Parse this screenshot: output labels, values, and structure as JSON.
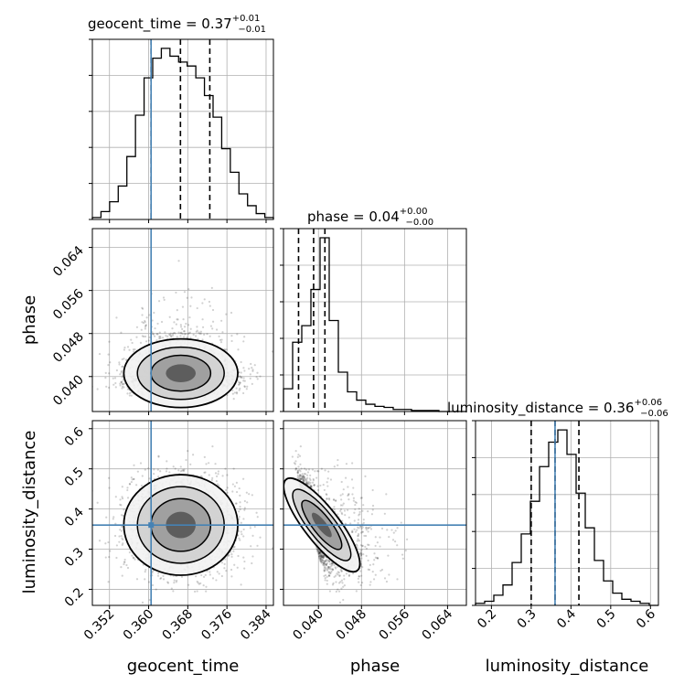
{
  "chart_data": {
    "type": "corner",
    "parameters": [
      "geocent_time",
      "phase",
      "luminosity_distance"
    ],
    "truths": {
      "geocent_time": 0.3605,
      "phase": null,
      "luminosity_distance": 0.36
    },
    "titles": [
      {
        "text": "geocent_time = 0.37",
        "sup": "+0.01",
        "sub": "−0.01"
      },
      {
        "text": "phase = 0.04",
        "sup": "+0.00",
        "sub": "−0.00"
      },
      {
        "text": "luminosity_distance = 0.36",
        "sup": "+0.06",
        "sub": "−0.06"
      }
    ],
    "axis_labels": {
      "geocent_time": "geocent_time",
      "phase": "phase",
      "luminosity_distance": "luminosity_distance"
    },
    "ranges": {
      "geocent_time": [
        0.3485,
        0.3855
      ],
      "phase": [
        0.0335,
        0.0675
      ],
      "luminosity_distance": [
        0.16,
        0.62
      ]
    },
    "ticks": {
      "geocent_time": [
        "0.352",
        "0.360",
        "0.368",
        "0.376",
        "0.384"
      ],
      "phase": [
        "0.040",
        "0.048",
        "0.056",
        "0.064"
      ],
      "luminosity_distance": [
        "0.2",
        "0.3",
        "0.4",
        "0.5",
        "0.6"
      ]
    },
    "quantiles": {
      "geocent_time": [
        0.3605,
        0.3665,
        0.3725
      ],
      "phase": [
        0.0363,
        0.0391,
        0.0412
      ],
      "luminosity_distance": [
        0.3,
        0.36,
        0.42
      ]
    },
    "histograms": {
      "geocent_time": {
        "edges_range": [
          0.3485,
          0.3855
        ],
        "counts": [
          1,
          4,
          9,
          17,
          32,
          53,
          72,
          82,
          87,
          83,
          80,
          78,
          72,
          63,
          52,
          36,
          24,
          13,
          7,
          3,
          1
        ]
      },
      "phase": {
        "edges_range": [
          0.0335,
          0.0675
        ],
        "counts": [
          22,
          67,
          83,
          118,
          168,
          88,
          38,
          19,
          11,
          7,
          5,
          4,
          2,
          2,
          1,
          1,
          1,
          0,
          0,
          0
        ]
      },
      "luminosity_distance": {
        "edges_range": [
          0.16,
          0.62
        ],
        "counts": [
          1,
          2,
          5,
          10,
          21,
          35,
          51,
          68,
          80,
          86,
          74,
          55,
          38,
          22,
          12,
          6,
          3,
          2,
          1,
          0
        ]
      }
    },
    "grid": true
  }
}
